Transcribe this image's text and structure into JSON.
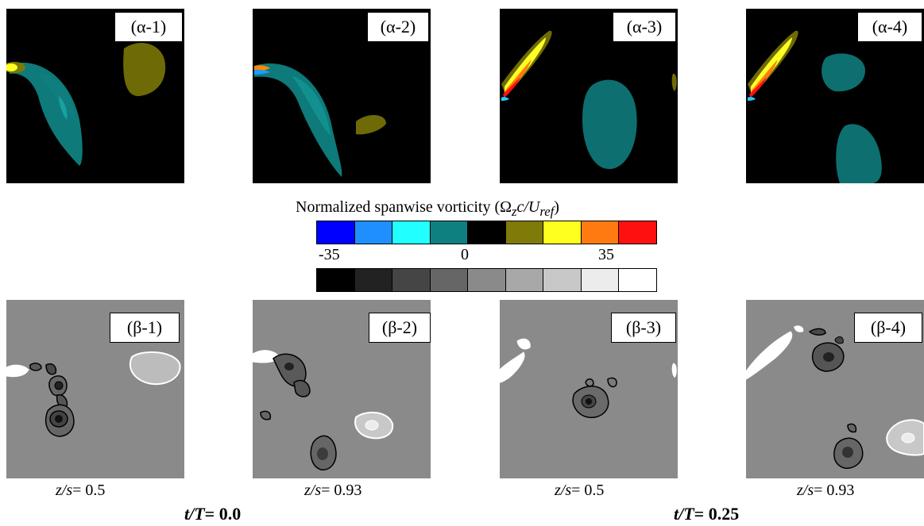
{
  "top_row": {
    "panels": [
      {
        "label": "(α-1)"
      },
      {
        "label": "(α-2)"
      },
      {
        "label": "(α-3)"
      },
      {
        "label": "(α-4)"
      }
    ]
  },
  "bottom_row": {
    "panels": [
      {
        "label": "(β-1)",
        "caption_var": "z/s",
        "caption_value": "= 0.5"
      },
      {
        "label": "(β-2)",
        "caption_var": "z/s",
        "caption_value": "= 0.93"
      },
      {
        "label": "(β-3)",
        "caption_var": "z/s",
        "caption_value": "= 0.5"
      },
      {
        "label": "(β-4)",
        "caption_var": "z/s",
        "caption_value": "= 0.93"
      }
    ]
  },
  "colorbar": {
    "title_prefix": "Normalized spanwise vorticity (Ω",
    "title_sub_z": "z",
    "title_c": "c/U",
    "title_sub_ref": "ref",
    "title_suffix": ")",
    "min_label": "-35",
    "mid_label": "0",
    "max_label": "35",
    "color_scale": [
      "#0000ff",
      "#1f8fff",
      "#22ffff",
      "#0e8080",
      "#000000",
      "#807a08",
      "#ffff1e",
      "#ff7a10",
      "#ff1010"
    ],
    "gray_scale": [
      "#000000",
      "#222222",
      "#454545",
      "#666666",
      "#8a8a8a",
      "#a8a8a8",
      "#c8c8c8",
      "#ececec",
      "#ffffff"
    ]
  },
  "time_labels": [
    {
      "var": "t/T",
      "value": "= 0.0"
    },
    {
      "var": "t/T",
      "value": "= 0.25"
    }
  ]
}
